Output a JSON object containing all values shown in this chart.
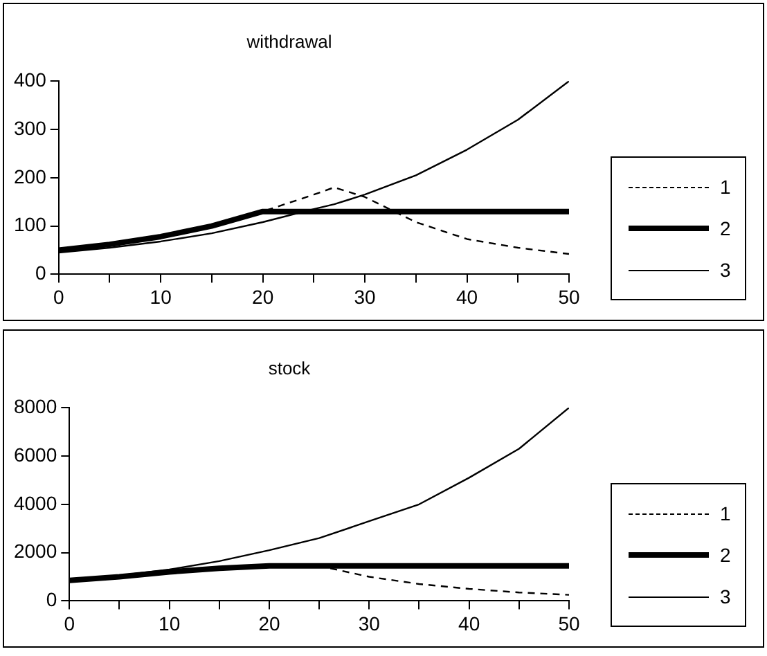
{
  "chart_data": [
    {
      "type": "line",
      "title": "withdrawal",
      "x": [
        0,
        5,
        10,
        15,
        20,
        25,
        27,
        30,
        35,
        40,
        45,
        50
      ],
      "xlim": [
        0,
        50
      ],
      "xticks": [
        0,
        {
          "value": 5,
          "label": null
        },
        10,
        {
          "value": 15,
          "label": null
        },
        20,
        {
          "value": 25,
          "label": null
        },
        30,
        {
          "value": 35,
          "label": null
        },
        40,
        {
          "value": 45,
          "label": null
        },
        50
      ],
      "ylim": [
        0,
        400
      ],
      "yticks": [
        0,
        100,
        200,
        300,
        400
      ],
      "grid": false,
      "legend": "right",
      "marker": "none",
      "series": [
        {
          "name": "1",
          "color": "#000000",
          "line_style": "dashed",
          "values": [
            50,
            62,
            78,
            100,
            130,
            165,
            180,
            160,
            108,
            73,
            55,
            42
          ]
        },
        {
          "name": "2",
          "color": "#000000",
          "line_style": "solid",
          "values": [
            50,
            62,
            78,
            100,
            130,
            130,
            130,
            130,
            130,
            130,
            130,
            130
          ]
        },
        {
          "name": "3",
          "color": "#000000",
          "line_style": "solid",
          "values": [
            45,
            55,
            68,
            85,
            108,
            135,
            145,
            165,
            205,
            258,
            320,
            400
          ]
        }
      ]
    },
    {
      "type": "line",
      "title": "stock",
      "x": [
        0,
        5,
        10,
        15,
        20,
        25,
        30,
        35,
        40,
        45,
        50
      ],
      "xlim": [
        0,
        50
      ],
      "xticks": [
        0,
        {
          "value": 5,
          "label": null
        },
        10,
        {
          "value": 15,
          "label": null
        },
        20,
        {
          "value": 25,
          "label": null
        },
        30,
        {
          "value": 35,
          "label": null
        },
        40,
        {
          "value": 45,
          "label": null
        },
        50
      ],
      "ylim": [
        0,
        8000
      ],
      "yticks": [
        0,
        2000,
        4000,
        6000,
        8000
      ],
      "grid": false,
      "legend": "right",
      "marker": "none",
      "series": [
        {
          "name": "1",
          "color": "#000000",
          "line_style": "dashed",
          "values": [
            850,
            1000,
            1200,
            1350,
            1450,
            1450,
            1000,
            700,
            500,
            350,
            250
          ]
        },
        {
          "name": "2",
          "color": "#000000",
          "line_style": "solid",
          "values": [
            850,
            1000,
            1200,
            1350,
            1450,
            1450,
            1450,
            1450,
            1450,
            1450,
            1450
          ]
        },
        {
          "name": "3",
          "color": "#000000",
          "line_style": "solid",
          "values": [
            850,
            1050,
            1300,
            1650,
            2100,
            2600,
            3300,
            4000,
            5100,
            6300,
            8000
          ]
        }
      ]
    }
  ]
}
